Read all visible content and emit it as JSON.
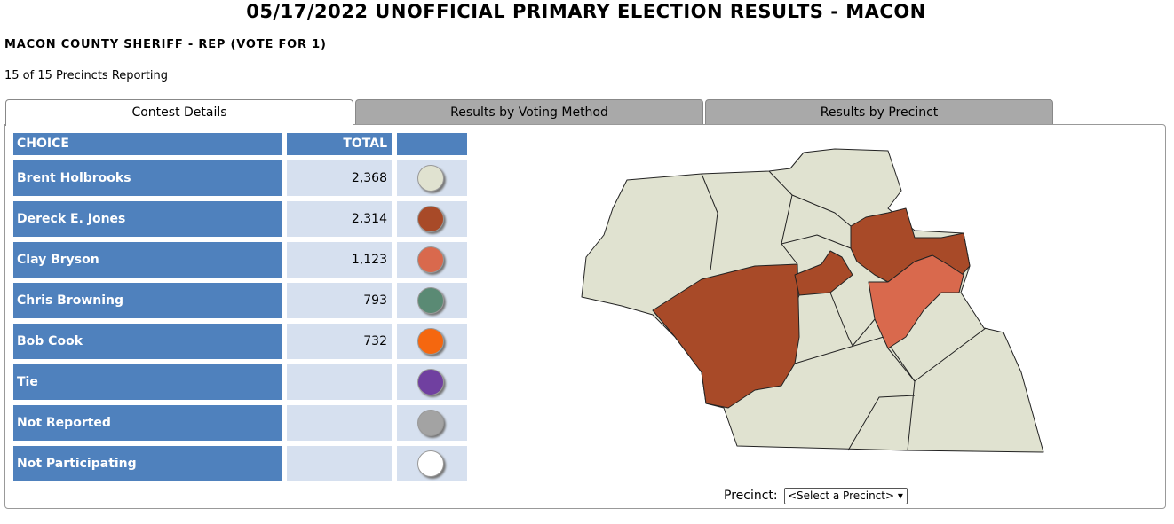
{
  "header": {
    "title": "05/17/2022 UNOFFICIAL PRIMARY ELECTION RESULTS - MACON",
    "contest": "MACON COUNTY SHERIFF - REP (VOTE FOR 1)",
    "reporting": "15 of 15 Precincts Reporting"
  },
  "tabs": [
    "Contest Details",
    "Results by Voting Method",
    "Results by Precinct"
  ],
  "table": {
    "header": [
      "CHOICE",
      "TOTAL"
    ],
    "rows": [
      {
        "choice": "Brent Holbrooks",
        "total": "2,368",
        "color": "#e0e2d0"
      },
      {
        "choice": "Dereck E. Jones",
        "total": "2,314",
        "color": "#a84a28"
      },
      {
        "choice": "Clay Bryson",
        "total": "1,123",
        "color": "#d9694d"
      },
      {
        "choice": "Chris Browning",
        "total": "793",
        "color": "#5a8a74"
      },
      {
        "choice": "Bob Cook",
        "total": "732",
        "color": "#f5670f"
      },
      {
        "choice": "Tie",
        "color": "#7040a0"
      },
      {
        "choice": "Not Reported",
        "color": "#a3a3a3"
      },
      {
        "choice": "Not Participating",
        "color": "#ffffff"
      }
    ]
  },
  "precinct": {
    "label": "Precinct:",
    "select": "<Select a Precinct> ▾"
  }
}
